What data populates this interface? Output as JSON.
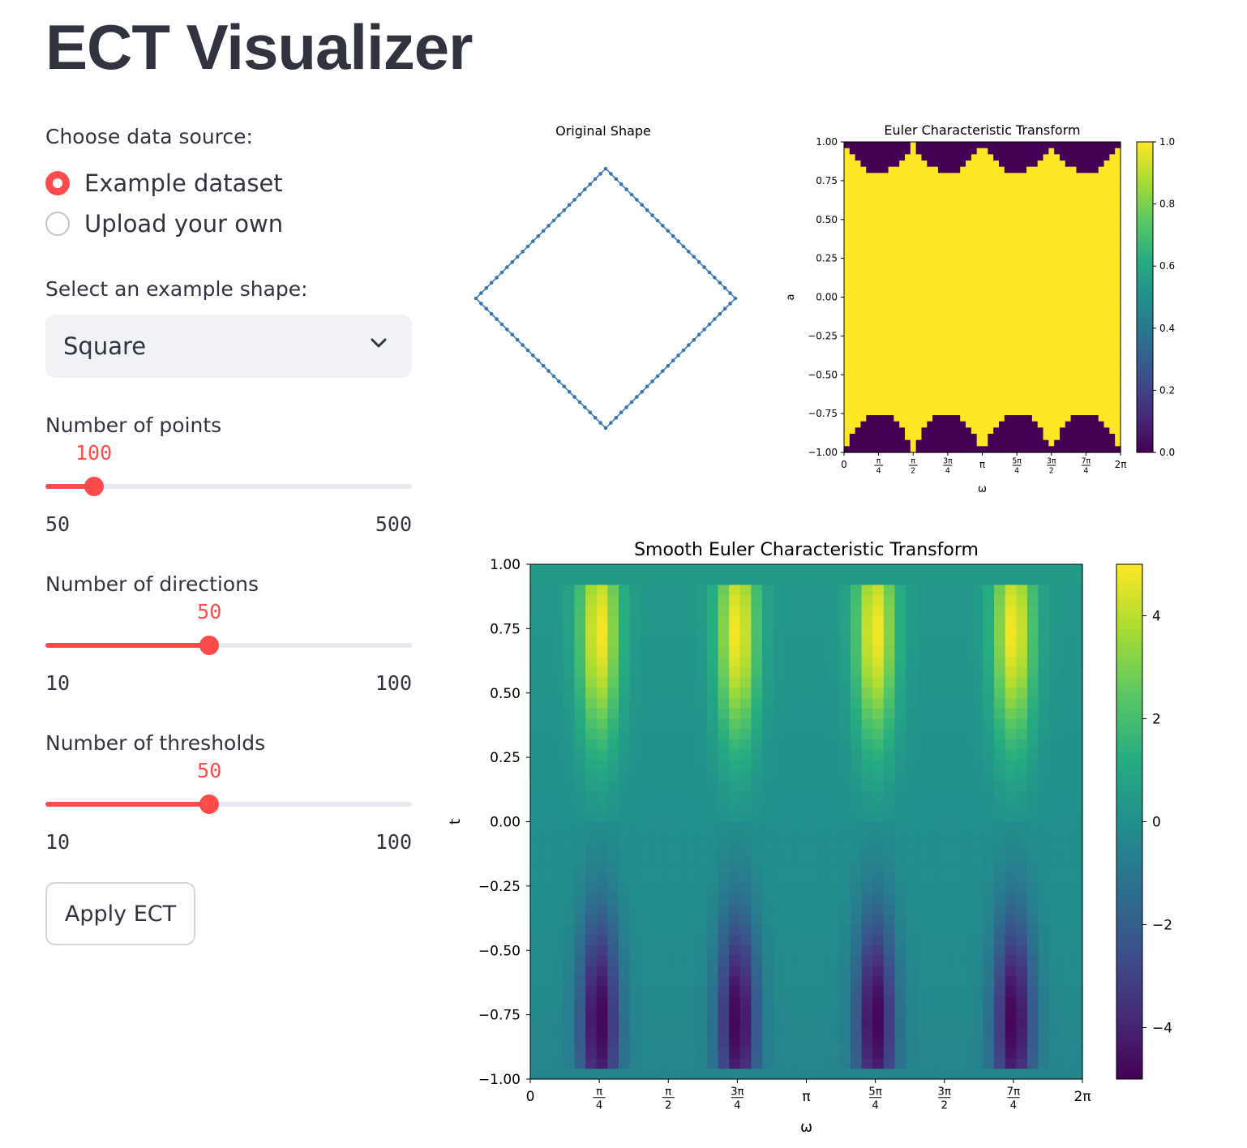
{
  "page": {
    "title": "ECT Visualizer"
  },
  "sidebar": {
    "source_label": "Choose data source:",
    "radio_options": [
      {
        "label": "Example dataset",
        "checked": true
      },
      {
        "label": "Upload your own",
        "checked": false
      }
    ],
    "shape_label": "Select an example shape:",
    "shape_selected": "Square",
    "sliders": [
      {
        "label": "Number of points",
        "value": "100",
        "min": "50",
        "max": "500",
        "fraction": 0.1111
      },
      {
        "label": "Number of directions",
        "value": "50",
        "min": "10",
        "max": "100",
        "fraction": 0.4444
      },
      {
        "label": "Number of thresholds",
        "value": "50",
        "min": "10",
        "max": "100",
        "fraction": 0.4444
      }
    ],
    "apply_button": "Apply ECT"
  },
  "chart_data": [
    {
      "type": "scatter",
      "title": "Original Shape",
      "shape": "square rotated 45°",
      "points": 100,
      "vertices": [
        [
          0,
          1
        ],
        [
          1,
          0
        ],
        [
          0,
          -1
        ],
        [
          -1,
          0
        ]
      ],
      "axes": "off",
      "color": "#3b75af"
    },
    {
      "type": "heatmap",
      "title": "Euler Characteristic Transform",
      "xlabel": "ω",
      "ylabel": "a",
      "x_ticks": [
        "0",
        "π/4",
        "π/2",
        "3π/4",
        "π",
        "5π/4",
        "3π/2",
        "7π/4",
        "2π"
      ],
      "y_ticks": [
        "-1.00",
        "-0.75",
        "-0.50",
        "-0.25",
        "0.00",
        "0.25",
        "0.50",
        "0.75",
        "1.00"
      ],
      "colorbar_ticks": [
        "0.0",
        "0.2",
        "0.4",
        "0.6",
        "0.8",
        "1.0"
      ],
      "xlim": [
        0,
        6.2832
      ],
      "ylim": [
        -1,
        1
      ],
      "colormap": "viridis",
      "values": "1 almost everywhere; 0 in top band (t > 1/√2 sec-like bumps near top) and bottom band (t < −|cos ω|+|sin ω| profile), peaking at π/4, 3π/4, 5π/4, 7π/4"
    },
    {
      "type": "heatmap",
      "title": "Smooth Euler Characteristic Transform",
      "xlabel": "ω",
      "ylabel": "t",
      "x_ticks": [
        "0",
        "π/4",
        "π/2",
        "3π/4",
        "π",
        "5π/4",
        "3π/2",
        "7π/4",
        "2π"
      ],
      "y_ticks": [
        "-1.00",
        "-0.75",
        "-0.50",
        "-0.25",
        "0.00",
        "0.25",
        "0.50",
        "0.75",
        "1.00"
      ],
      "colorbar_ticks": [
        "-4",
        "-2",
        "0",
        "2",
        "4"
      ],
      "xlim": [
        0,
        6.2832
      ],
      "ylim": [
        -1,
        1
      ],
      "vlim": [
        -5,
        5
      ],
      "colormap": "viridis",
      "peaks": [
        {
          "omega": "π/4",
          "max": 5,
          "max_t": 0.73,
          "min": -5,
          "min_t": -0.77
        },
        {
          "omega": "3π/4",
          "max": 5,
          "max_t": 0.73,
          "min": -5,
          "min_t": -0.77
        },
        {
          "omega": "5π/4",
          "max": 5,
          "max_t": 0.73,
          "min": -5,
          "min_t": -0.77
        },
        {
          "omega": "7π/4",
          "max": 5,
          "max_t": 0.73,
          "min": -5,
          "min_t": -0.77
        }
      ]
    }
  ]
}
